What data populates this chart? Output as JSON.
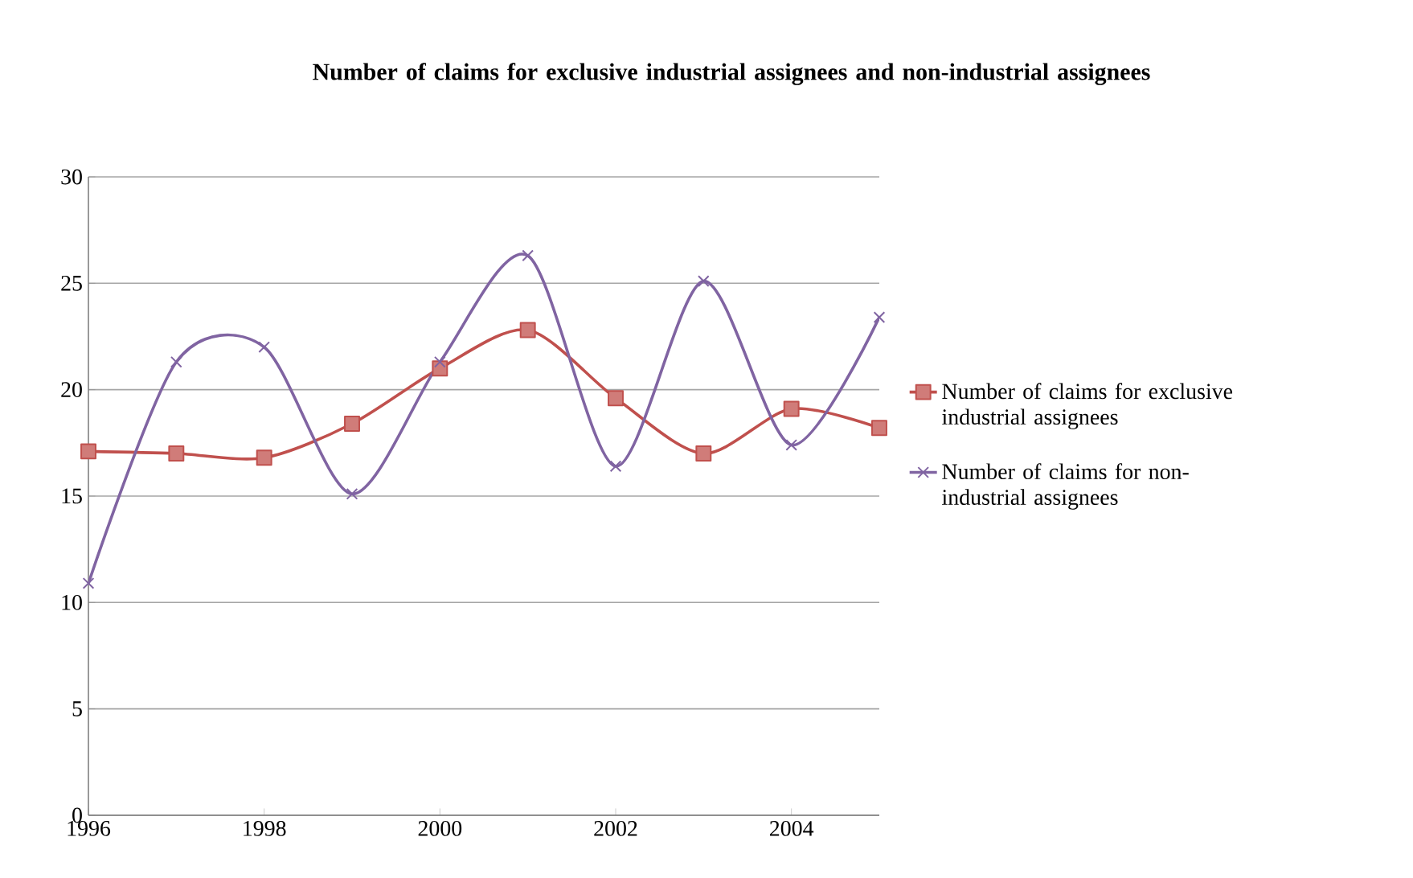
{
  "chart_data": {
    "type": "line",
    "title": "Number of claims for exclusive industrial assignees and non-industrial assignees",
    "x": [
      1996,
      1997,
      1998,
      1999,
      2000,
      2001,
      2002,
      2003,
      2004,
      2005
    ],
    "series": [
      {
        "name": "Number of claims for exclusive industrial assignees",
        "color": "#c0504d",
        "marker": "square",
        "values": [
          17.1,
          17.0,
          16.8,
          18.4,
          21.0,
          22.8,
          19.6,
          17.0,
          19.1,
          18.2
        ]
      },
      {
        "name": "Number of claims for non-industrial assignees",
        "color": "#8064a2",
        "marker": "cross",
        "values": [
          10.9,
          21.3,
          22.0,
          15.1,
          21.3,
          26.3,
          16.4,
          25.1,
          17.4,
          23.4
        ]
      }
    ],
    "xlim": [
      1996,
      2005
    ],
    "xticks": [
      1996,
      1998,
      2000,
      2002,
      2004
    ],
    "ylim": [
      0,
      30
    ],
    "yticks": [
      0,
      5,
      10,
      15,
      20,
      25,
      30
    ],
    "grid": "y",
    "legend": "right",
    "line_style": "solid"
  }
}
